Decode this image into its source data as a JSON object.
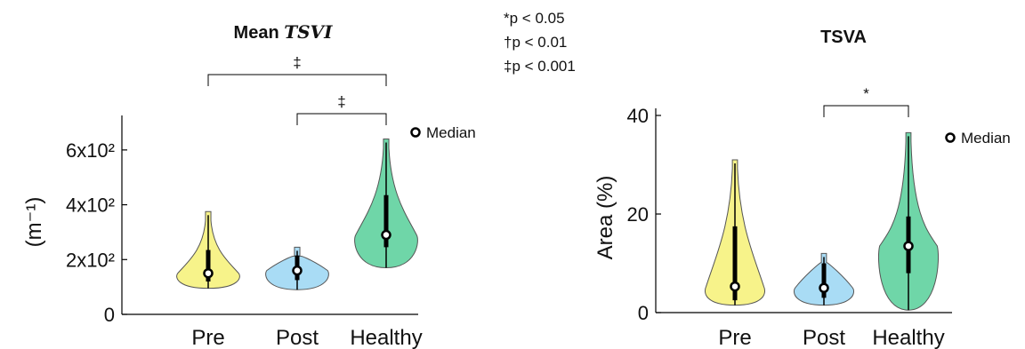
{
  "significance_legend": [
    "*p < 0.05",
    "†p < 0.01",
    "‡p < 0.001"
  ],
  "chart_data": [
    {
      "type": "violin",
      "title_prefix": "Mean ",
      "title_math": "TSVI",
      "ylabel": "(m⁻¹)",
      "ylim": [
        0,
        700
      ],
      "yticks": [
        {
          "value": 0,
          "label": "0"
        },
        {
          "value": 200,
          "label": "2x10²"
        },
        {
          "value": 400,
          "label": "4x10²"
        },
        {
          "value": 600,
          "label": "6x10²"
        }
      ],
      "categories": [
        "Pre",
        "Post",
        "Healthy"
      ],
      "colors": [
        "#f7f38a",
        "#a9dcf5",
        "#6fd6a8"
      ],
      "medians": [
        150,
        160,
        290
      ],
      "min": [
        95,
        90,
        170
      ],
      "max": [
        375,
        245,
        640
      ],
      "q1": [
        120,
        125,
        245
      ],
      "q3": [
        235,
        215,
        435
      ],
      "legend": "Median",
      "legend_position": "top-right",
      "brackets": [
        {
          "from": "Pre",
          "to": "Healthy",
          "symbol": "‡"
        },
        {
          "from": "Post",
          "to": "Healthy",
          "symbol": "‡"
        }
      ]
    },
    {
      "type": "violin",
      "title": "TSVA",
      "ylabel": "Area (%)",
      "ylim": [
        0,
        40
      ],
      "yticks": [
        {
          "value": 0,
          "label": "0"
        },
        {
          "value": 20,
          "label": "20"
        },
        {
          "value": 40,
          "label": "40"
        }
      ],
      "categories": [
        "Pre",
        "Post",
        "Healthy"
      ],
      "colors": [
        "#f7f38a",
        "#a9dcf5",
        "#6fd6a8"
      ],
      "medians": [
        5.3,
        5.0,
        13.5
      ],
      "min": [
        1.5,
        1.5,
        0.5
      ],
      "max": [
        31,
        12,
        36.5
      ],
      "q1": [
        2.5,
        3.0,
        8
      ],
      "q3": [
        17.5,
        10,
        19.5
      ],
      "legend": "Median",
      "legend_position": "top-right",
      "brackets": [
        {
          "from": "Post",
          "to": "Healthy",
          "symbol": "*"
        }
      ]
    }
  ]
}
